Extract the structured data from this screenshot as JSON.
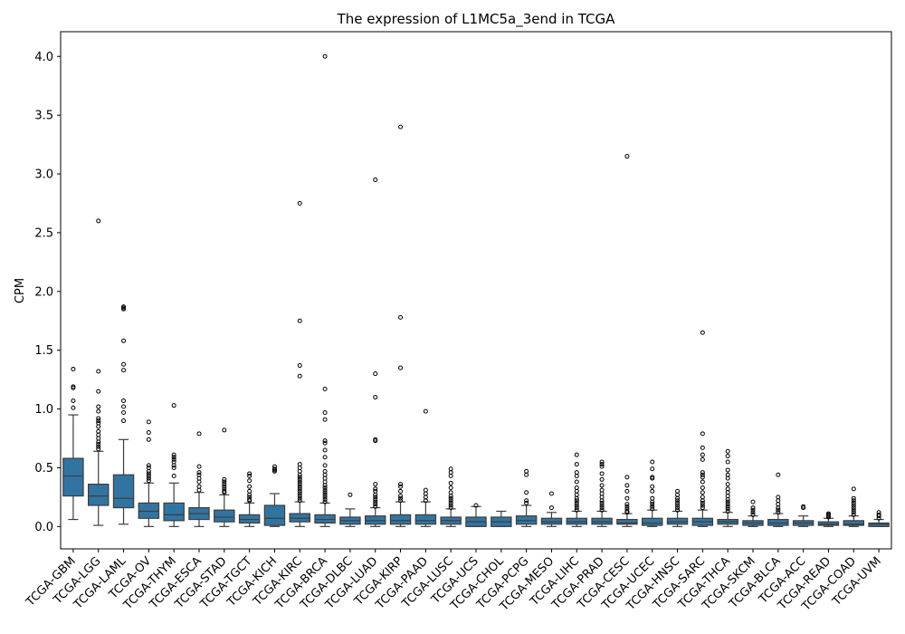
{
  "chart_data": {
    "type": "box",
    "title": "The expression of L1MC5a_3end in TCGA",
    "xlabel": "",
    "ylabel": "CPM",
    "ylim": [
      -0.19,
      4.21
    ],
    "yticks": [
      "0.0",
      "0.5",
      "1.0",
      "1.5",
      "2.0",
      "2.5",
      "3.0",
      "3.5",
      "4.0"
    ],
    "box_color": "#3274a1",
    "grid": false,
    "categories": [
      "TCGA-GBM",
      "TCGA-LGG",
      "TCGA-LAML",
      "TCGA-OV",
      "TCGA-THYM",
      "TCGA-ESCA",
      "TCGA-STAD",
      "TCGA-TGCT",
      "TCGA-KICH",
      "TCGA-KIRC",
      "TCGA-BRCA",
      "TCGA-DLBC",
      "TCGA-LUAD",
      "TCGA-KIRP",
      "TCGA-PAAD",
      "TCGA-LUSC",
      "TCGA-UCS",
      "TCGA-CHOL",
      "TCGA-PCPG",
      "TCGA-MESO",
      "TCGA-LIHC",
      "TCGA-PRAD",
      "TCGA-CESC",
      "TCGA-UCEC",
      "TCGA-HNSC",
      "TCGA-SARC",
      "TCGA-THCA",
      "TCGA-SKCM",
      "TCGA-BLCA",
      "TCGA-ACC",
      "TCGA-READ",
      "TCGA-COAD",
      "TCGA-UVM"
    ],
    "boxes": [
      {
        "whislo": 0.06,
        "q1": 0.26,
        "med": 0.43,
        "q3": 0.58,
        "whishi": 0.95,
        "fliers": [
          1.01,
          1.07,
          1.18,
          1.19,
          1.34
        ]
      },
      {
        "whislo": 0.01,
        "q1": 0.18,
        "med": 0.26,
        "q3": 0.36,
        "whishi": 0.64,
        "fliers": [
          0.66,
          0.68,
          0.7,
          0.72,
          0.75,
          0.78,
          0.81,
          0.85,
          0.88,
          0.9,
          0.92,
          0.98,
          1.02,
          1.15,
          1.32,
          2.6
        ]
      },
      {
        "whislo": 0.02,
        "q1": 0.16,
        "med": 0.24,
        "q3": 0.44,
        "whishi": 0.74,
        "fliers": [
          0.9,
          0.97,
          1.02,
          1.07,
          1.33,
          1.38,
          1.58,
          1.85,
          1.86,
          1.87
        ]
      },
      {
        "whislo": 0.0,
        "q1": 0.07,
        "med": 0.13,
        "q3": 0.2,
        "whishi": 0.37,
        "fliers": [
          0.39,
          0.41,
          0.43,
          0.45,
          0.47,
          0.5,
          0.52,
          0.74,
          0.8,
          0.89
        ]
      },
      {
        "whislo": 0.0,
        "q1": 0.05,
        "med": 0.1,
        "q3": 0.2,
        "whishi": 0.37,
        "fliers": [
          0.43,
          0.5,
          0.52,
          0.55,
          0.57,
          0.59,
          0.61,
          1.03
        ]
      },
      {
        "whislo": 0.0,
        "q1": 0.06,
        "med": 0.11,
        "q3": 0.16,
        "whishi": 0.29,
        "fliers": [
          0.31,
          0.34,
          0.38,
          0.41,
          0.44,
          0.46,
          0.51,
          0.79
        ]
      },
      {
        "whislo": 0.0,
        "q1": 0.04,
        "med": 0.08,
        "q3": 0.14,
        "whishi": 0.27,
        "fliers": [
          0.29,
          0.3,
          0.32,
          0.34,
          0.36,
          0.38,
          0.4,
          0.82
        ]
      },
      {
        "whislo": 0.0,
        "q1": 0.03,
        "med": 0.06,
        "q3": 0.1,
        "whishi": 0.2,
        "fliers": [
          0.22,
          0.23,
          0.25,
          0.27,
          0.3,
          0.34,
          0.39,
          0.43,
          0.45
        ]
      },
      {
        "whislo": 0.0,
        "q1": 0.01,
        "med": 0.07,
        "q3": 0.18,
        "whishi": 0.28,
        "fliers": [
          0.47,
          0.48,
          0.49,
          0.51
        ]
      },
      {
        "whislo": 0.0,
        "q1": 0.04,
        "med": 0.07,
        "q3": 0.11,
        "whishi": 0.21,
        "fliers": [
          0.22,
          0.24,
          0.26,
          0.28,
          0.3,
          0.32,
          0.34,
          0.36,
          0.38,
          0.4,
          0.42,
          0.44,
          0.47,
          0.5,
          0.53,
          1.28,
          1.37,
          1.75,
          2.75
        ]
      },
      {
        "whislo": 0.0,
        "q1": 0.03,
        "med": 0.06,
        "q3": 0.1,
        "whishi": 0.2,
        "fliers": [
          0.21,
          0.23,
          0.25,
          0.27,
          0.29,
          0.31,
          0.33,
          0.35,
          0.38,
          0.41,
          0.44,
          0.47,
          0.52,
          0.59,
          0.65,
          0.71,
          0.73,
          0.91,
          0.97,
          1.17,
          4.0
        ]
      },
      {
        "whislo": 0.0,
        "q1": 0.02,
        "med": 0.05,
        "q3": 0.08,
        "whishi": 0.15,
        "fliers": [
          0.27
        ]
      },
      {
        "whislo": 0.0,
        "q1": 0.02,
        "med": 0.05,
        "q3": 0.09,
        "whishi": 0.16,
        "fliers": [
          0.17,
          0.19,
          0.21,
          0.23,
          0.25,
          0.27,
          0.3,
          0.32,
          0.36,
          0.73,
          0.74,
          1.1,
          1.3,
          2.95
        ]
      },
      {
        "whislo": 0.0,
        "q1": 0.02,
        "med": 0.05,
        "q3": 0.1,
        "whishi": 0.21,
        "fliers": [
          0.22,
          0.24,
          0.26,
          0.3,
          0.34,
          0.36,
          1.35,
          1.78,
          3.4
        ]
      },
      {
        "whislo": 0.0,
        "q1": 0.02,
        "med": 0.05,
        "q3": 0.1,
        "whishi": 0.21,
        "fliers": [
          0.22,
          0.25,
          0.28,
          0.31,
          0.98
        ]
      },
      {
        "whislo": 0.0,
        "q1": 0.02,
        "med": 0.05,
        "q3": 0.08,
        "whishi": 0.15,
        "fliers": [
          0.16,
          0.18,
          0.2,
          0.22,
          0.24,
          0.26,
          0.29,
          0.33,
          0.37,
          0.43,
          0.46,
          0.49
        ]
      },
      {
        "whislo": 0.0,
        "q1": 0.0,
        "med": 0.04,
        "q3": 0.08,
        "whishi": 0.17,
        "fliers": [
          0.18
        ]
      },
      {
        "whislo": 0.0,
        "q1": 0.0,
        "med": 0.04,
        "q3": 0.08,
        "whishi": 0.13,
        "fliers": []
      },
      {
        "whislo": 0.0,
        "q1": 0.02,
        "med": 0.05,
        "q3": 0.09,
        "whishi": 0.18,
        "fliers": [
          0.2,
          0.22,
          0.29,
          0.44,
          0.47
        ]
      },
      {
        "whislo": 0.0,
        "q1": 0.02,
        "med": 0.04,
        "q3": 0.07,
        "whishi": 0.12,
        "fliers": [
          0.16,
          0.28
        ]
      },
      {
        "whislo": 0.0,
        "q1": 0.02,
        "med": 0.04,
        "q3": 0.07,
        "whishi": 0.13,
        "fliers": [
          0.14,
          0.16,
          0.18,
          0.2,
          0.22,
          0.24,
          0.27,
          0.3,
          0.33,
          0.38,
          0.43,
          0.46,
          0.53,
          0.61
        ]
      },
      {
        "whislo": 0.0,
        "q1": 0.02,
        "med": 0.04,
        "q3": 0.07,
        "whishi": 0.13,
        "fliers": [
          0.14,
          0.16,
          0.18,
          0.2,
          0.22,
          0.25,
          0.28,
          0.31,
          0.35,
          0.4,
          0.45,
          0.51,
          0.53,
          0.55
        ]
      },
      {
        "whislo": 0.0,
        "q1": 0.02,
        "med": 0.03,
        "q3": 0.06,
        "whishi": 0.11,
        "fliers": [
          0.12,
          0.13,
          0.15,
          0.17,
          0.19,
          0.24,
          0.3,
          0.35,
          0.42,
          3.15
        ]
      },
      {
        "whislo": 0.0,
        "q1": 0.01,
        "med": 0.03,
        "q3": 0.07,
        "whishi": 0.14,
        "fliers": [
          0.15,
          0.17,
          0.19,
          0.21,
          0.24,
          0.3,
          0.34,
          0.41,
          0.42,
          0.49,
          0.55
        ]
      },
      {
        "whislo": 0.0,
        "q1": 0.02,
        "med": 0.04,
        "q3": 0.07,
        "whishi": 0.13,
        "fliers": [
          0.14,
          0.16,
          0.18,
          0.2,
          0.22,
          0.24,
          0.27,
          0.3
        ]
      },
      {
        "whislo": 0.0,
        "q1": 0.01,
        "med": 0.04,
        "q3": 0.07,
        "whishi": 0.14,
        "fliers": [
          0.16,
          0.18,
          0.2,
          0.22,
          0.25,
          0.29,
          0.33,
          0.38,
          0.42,
          0.44,
          0.46,
          0.57,
          0.61,
          0.67,
          0.79,
          1.65
        ]
      },
      {
        "whislo": 0.0,
        "q1": 0.02,
        "med": 0.04,
        "q3": 0.06,
        "whishi": 0.12,
        "fliers": [
          0.13,
          0.15,
          0.17,
          0.19,
          0.21,
          0.23,
          0.26,
          0.29,
          0.32,
          0.36,
          0.41,
          0.44,
          0.48,
          0.55,
          0.6,
          0.64
        ]
      },
      {
        "whislo": 0.0,
        "q1": 0.01,
        "med": 0.03,
        "q3": 0.05,
        "whishi": 0.09,
        "fliers": [
          0.1,
          0.12,
          0.14,
          0.16,
          0.21
        ]
      },
      {
        "whislo": 0.0,
        "q1": 0.01,
        "med": 0.03,
        "q3": 0.06,
        "whishi": 0.11,
        "fliers": [
          0.12,
          0.14,
          0.16,
          0.19,
          0.22,
          0.25,
          0.44
        ]
      },
      {
        "whislo": 0.0,
        "q1": 0.01,
        "med": 0.03,
        "q3": 0.05,
        "whishi": 0.09,
        "fliers": [
          0.16,
          0.17
        ]
      },
      {
        "whislo": 0.0,
        "q1": 0.01,
        "med": 0.02,
        "q3": 0.04,
        "whishi": 0.07,
        "fliers": [
          0.08,
          0.09,
          0.1,
          0.11
        ]
      },
      {
        "whislo": 0.0,
        "q1": 0.01,
        "med": 0.02,
        "q3": 0.05,
        "whishi": 0.09,
        "fliers": [
          0.1,
          0.12,
          0.14,
          0.16,
          0.18,
          0.2,
          0.22,
          0.24,
          0.32
        ]
      },
      {
        "whislo": 0.0,
        "q1": 0.0,
        "med": 0.02,
        "q3": 0.03,
        "whishi": 0.06,
        "fliers": [
          0.07,
          0.09,
          0.1,
          0.12
        ]
      }
    ]
  }
}
